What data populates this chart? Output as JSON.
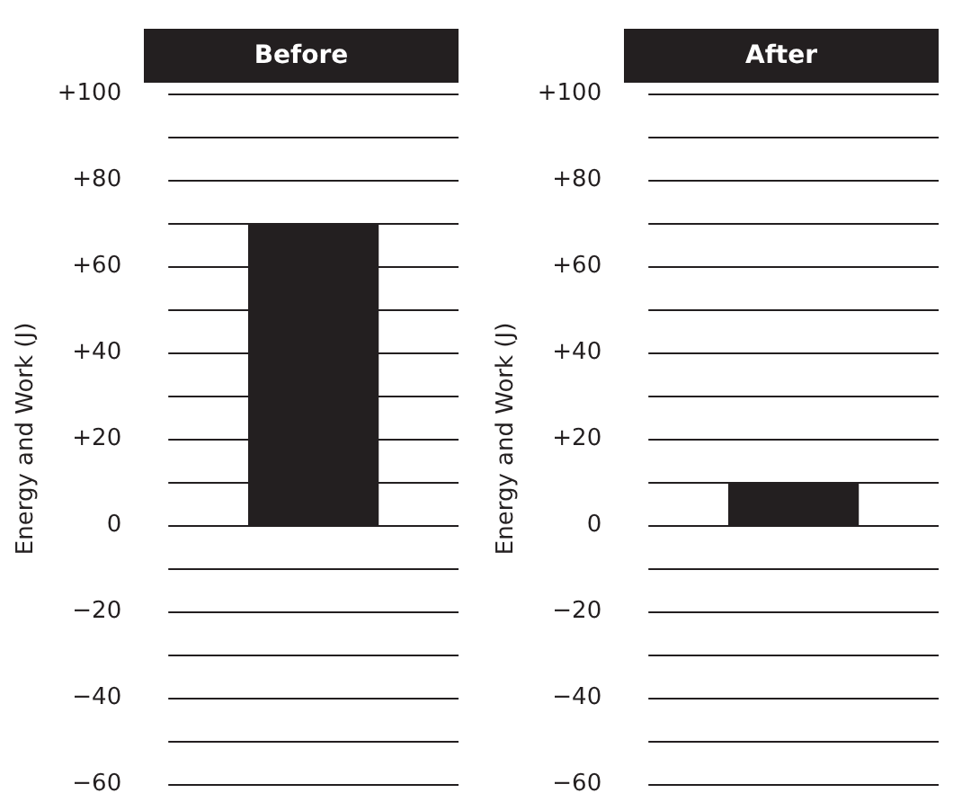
{
  "chart_data": [
    {
      "type": "bar",
      "title": "Before",
      "ylabel": "Energy and Work (J)",
      "categories": [
        null
      ],
      "values": [
        70
      ],
      "color": "#231f20",
      "ylim": [
        -60,
        100
      ],
      "yticks": [
        {
          "value": -60,
          "label": "−60"
        },
        {
          "value": -50,
          "label": null
        },
        {
          "value": -40,
          "label": "−40"
        },
        {
          "value": -30,
          "label": null
        },
        {
          "value": -20,
          "label": "−20"
        },
        {
          "value": -10,
          "label": null
        },
        0,
        {
          "value": 10,
          "label": null
        },
        {
          "value": 20,
          "label": "+20"
        },
        {
          "value": 30,
          "label": null
        },
        {
          "value": 40,
          "label": "+40"
        },
        {
          "value": 50,
          "label": null
        },
        {
          "value": 60,
          "label": "+60"
        },
        {
          "value": 70,
          "label": null
        },
        {
          "value": 80,
          "label": "+80"
        },
        {
          "value": 90,
          "label": null
        },
        {
          "value": 100,
          "label": "+100"
        }
      ],
      "grid": "y"
    },
    {
      "type": "bar",
      "title": "After",
      "ylabel": "Energy and Work (J)",
      "categories": [
        null
      ],
      "values": [
        10
      ],
      "color": "#231f20",
      "ylim": [
        -60,
        100
      ],
      "yticks": [
        {
          "value": -60,
          "label": "−60"
        },
        {
          "value": -50,
          "label": null
        },
        {
          "value": -40,
          "label": "−40"
        },
        {
          "value": -30,
          "label": null
        },
        {
          "value": -20,
          "label": "−20"
        },
        {
          "value": -10,
          "label": null
        },
        0,
        {
          "value": 10,
          "label": null
        },
        {
          "value": 20,
          "label": "+20"
        },
        {
          "value": 30,
          "label": null
        },
        {
          "value": 40,
          "label": "+40"
        },
        {
          "value": 50,
          "label": null
        },
        {
          "value": 60,
          "label": "+60"
        },
        {
          "value": 70,
          "label": null
        },
        {
          "value": 80,
          "label": "+80"
        },
        {
          "value": 90,
          "label": null
        },
        {
          "value": 100,
          "label": "+100"
        }
      ],
      "grid": "y"
    }
  ]
}
